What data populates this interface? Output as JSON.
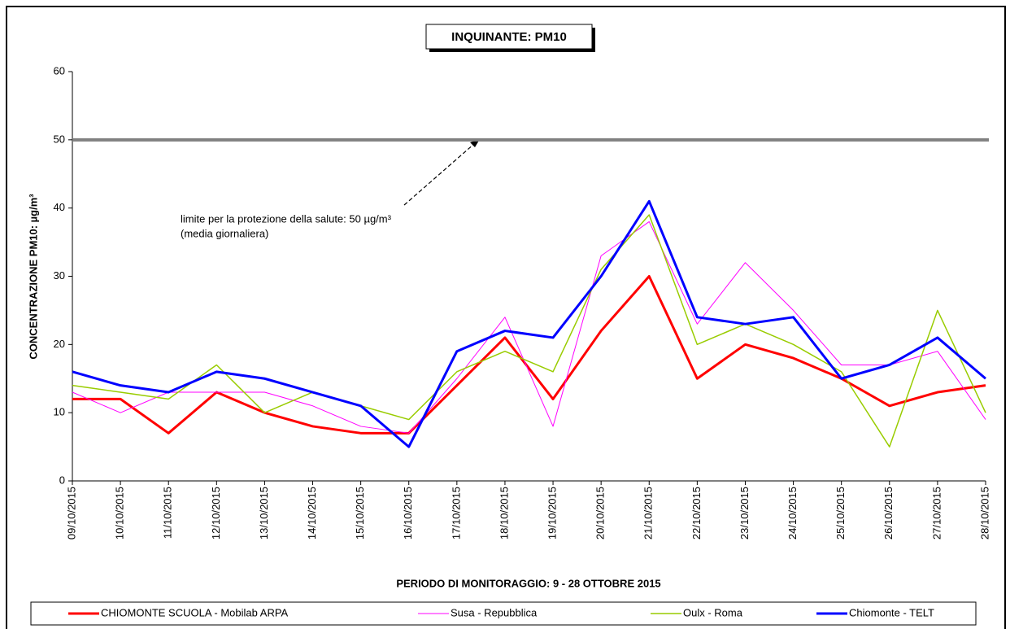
{
  "chart_data": {
    "type": "line",
    "title": "INQUINANTE: PM10",
    "y_label": "CONCENTRAZIONE PM10: µg/m³",
    "x_label": "PERIODO DI MONITORAGGIO: 9 - 28 OTTOBRE 2015",
    "annotation": [
      "limite per la protezione della salute: 50 µg/m³",
      "(media giornaliera)"
    ],
    "reference_line": {
      "value": 50,
      "color": "#808080"
    },
    "categories": [
      "09/10/2015",
      "10/10/2015",
      "11/10/2015",
      "12/10/2015",
      "13/10/2015",
      "14/10/2015",
      "15/10/2015",
      "16/10/2015",
      "17/10/2015",
      "18/10/2015",
      "19/10/2015",
      "20/10/2015",
      "21/10/2015",
      "22/10/2015",
      "23/10/2015",
      "24/10/2015",
      "25/10/2015",
      "26/10/2015",
      "27/10/2015",
      "28/10/2015"
    ],
    "series": [
      {
        "name": "CHIOMONTE SCUOLA - Mobilab ARPA",
        "color": "#ff0000",
        "values": [
          12,
          12,
          7,
          13,
          10,
          8,
          7,
          7,
          14,
          21,
          12,
          22,
          30,
          15,
          20,
          18,
          15,
          11,
          13,
          14
        ]
      },
      {
        "name": "Susa - Repubblica",
        "color": "#ff00ff",
        "values": [
          13,
          10,
          13,
          13,
          13,
          11,
          8,
          7,
          15,
          24,
          8,
          33,
          38,
          23,
          32,
          25,
          17,
          17,
          19,
          9
        ]
      },
      {
        "name": "Oulx - Roma",
        "color": "#99cc00",
        "values": [
          14,
          13,
          12,
          17,
          10,
          13,
          11,
          9,
          16,
          19,
          16,
          31,
          39,
          20,
          23,
          20,
          16,
          5,
          25,
          10
        ]
      },
      {
        "name": "Chiomonte - TELT",
        "color": "#0000ff",
        "values": [
          16,
          14,
          13,
          16,
          15,
          13,
          11,
          5,
          19,
          22,
          21,
          30,
          41,
          24,
          23,
          24,
          15,
          17,
          21,
          15
        ]
      }
    ],
    "ylim": [
      0,
      60
    ],
    "yticks": [
      0,
      10,
      20,
      30,
      40,
      50,
      60
    ],
    "legend": "bottom"
  }
}
